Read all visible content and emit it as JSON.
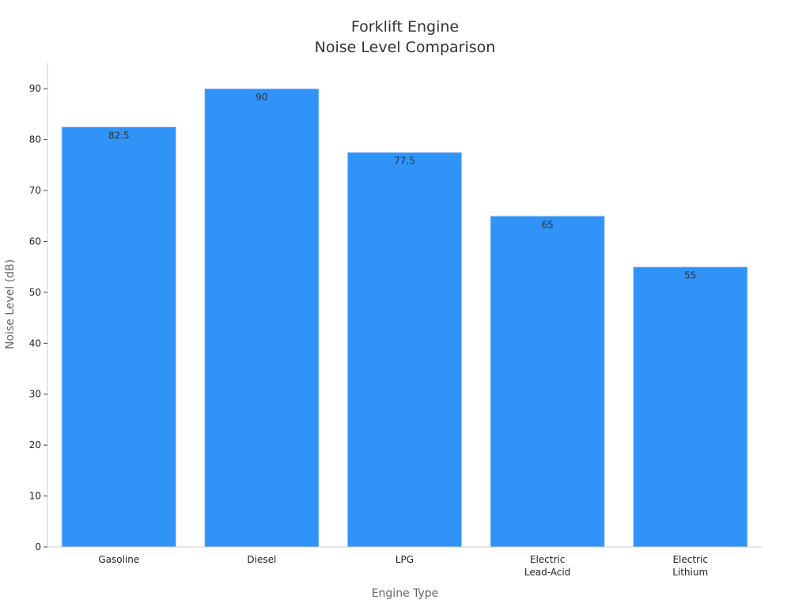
{
  "chart_data": {
    "type": "bar",
    "title_lines": [
      "Forklift Engine",
      "Noise Level Comparison"
    ],
    "xlabel": "Engine Type",
    "ylabel": "Noise Level (dB)",
    "categories": [
      [
        "Gasoline"
      ],
      [
        "Diesel"
      ],
      [
        "LPG"
      ],
      [
        "Electric",
        "Lead-Acid"
      ],
      [
        "Electric",
        "Lithium"
      ]
    ],
    "values": [
      82.5,
      90,
      77.5,
      65,
      55
    ],
    "data_labels": [
      "82.5",
      "90",
      "77.5",
      "65",
      "55"
    ],
    "ylim": [
      0,
      95
    ],
    "yticks": [
      0,
      10,
      20,
      30,
      40,
      50,
      60,
      70,
      80,
      90
    ],
    "grid": false,
    "bar_color": "#2f93f8"
  }
}
